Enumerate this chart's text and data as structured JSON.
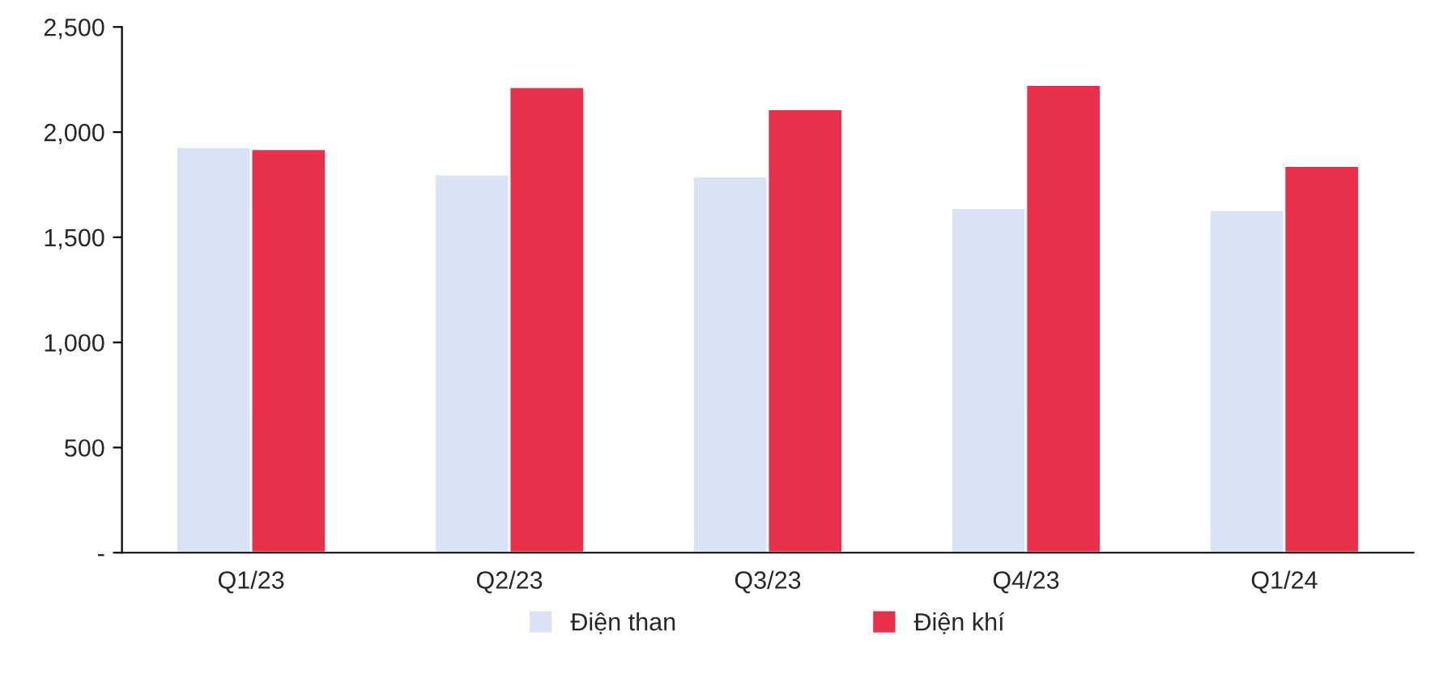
{
  "chart_data": {
    "type": "bar",
    "categories": [
      "Q1/23",
      "Q2/23",
      "Q3/23",
      "Q4/23",
      "Q1/24"
    ],
    "series": [
      {
        "name": "Điện than",
        "color": "#dae3f3",
        "values": [
          1930,
          1800,
          1790,
          1640,
          1630
        ]
      },
      {
        "name": "Điện khí",
        "color": "#e8304b",
        "values": [
          1920,
          2215,
          2110,
          2225,
          1840
        ]
      }
    ],
    "ylim": [
      0,
      2500
    ],
    "yticks": [
      {
        "value": 0,
        "label": "-"
      },
      {
        "value": 500,
        "label": "500"
      },
      {
        "value": 1000,
        "label": "1,000"
      },
      {
        "value": 1500,
        "label": "1,500"
      },
      {
        "value": 2000,
        "label": "2,000"
      },
      {
        "value": 2500,
        "label": "2,500"
      }
    ],
    "grid": false,
    "legend": "bottom"
  }
}
